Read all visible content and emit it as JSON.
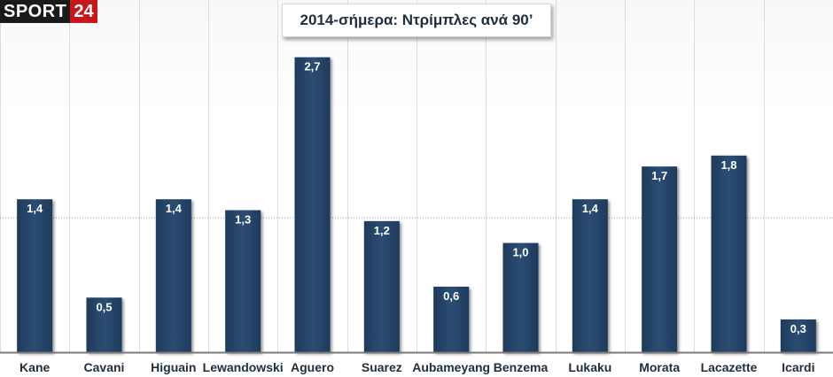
{
  "brand": {
    "word": "SPORT",
    "number": "24"
  },
  "chart_data": {
    "type": "bar",
    "title": "2014-σήμερα: Ντρίμπλες ανά 90’",
    "categories": [
      "Kane",
      "Cavani",
      "Higuain",
      "Lewandowski",
      "Aguero",
      "Suarez",
      "Aubameyang",
      "Benzema",
      "Lukaku",
      "Morata",
      "Lacazette",
      "Icardi"
    ],
    "values": [
      1.4,
      0.5,
      1.4,
      1.3,
      2.7,
      1.2,
      0.6,
      1.0,
      1.4,
      1.7,
      1.8,
      0.3
    ],
    "data_labels": [
      "1,4",
      "0,5",
      "1,4",
      "1,3",
      "2,7",
      "1,2",
      "0,6",
      "1,0",
      "1,4",
      "1,7",
      "1,8",
      "0,3"
    ],
    "reference_line": 1.23,
    "ylim": [
      0,
      2.9
    ],
    "colors": {
      "bar": "#1e3a5c",
      "bar_light": "#2c4d73",
      "grid": "#dcdcdc",
      "axis": "#7a7a7a"
    }
  }
}
